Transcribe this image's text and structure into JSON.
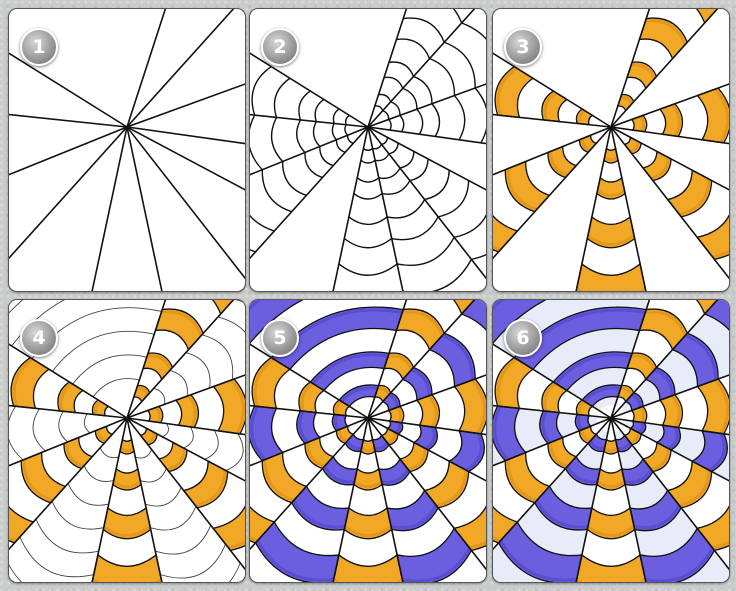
{
  "steps": [
    {
      "number": "1",
      "stage": "radial-lines"
    },
    {
      "number": "2",
      "stage": "arcs"
    },
    {
      "number": "3",
      "stage": "orange-bands"
    },
    {
      "number": "4",
      "stage": "web-lines"
    },
    {
      "number": "5",
      "stage": "purple-bands"
    },
    {
      "number": "6",
      "stage": "shading"
    }
  ],
  "colors": {
    "panel_bg": "#ffffff",
    "ink": "#111111",
    "orange": "#f0a826",
    "orange_dark": "#d98a12",
    "purple": "#6b5fe0",
    "purple_dark": "#4b3fc4",
    "shade": "#dfe6f5",
    "badge": "#8a8a8a",
    "page_bg": "#c9ccca"
  }
}
